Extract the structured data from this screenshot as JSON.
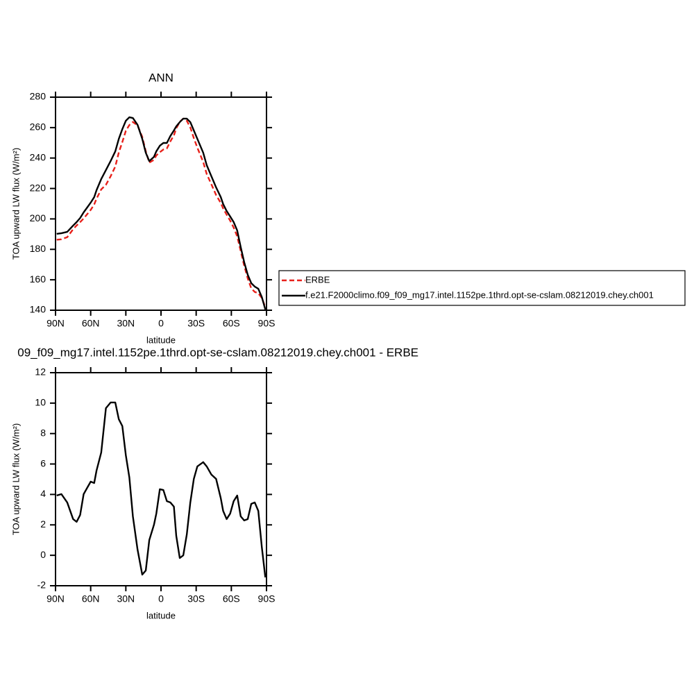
{
  "chart_data": [
    {
      "type": "line",
      "title": "ANN",
      "x_label": "latitude",
      "y_label": "TOA upward LW flux (W/m²)",
      "xlim": [
        90,
        -90
      ],
      "ylim": [
        140,
        280
      ],
      "xticks": [
        {
          "value": 90,
          "label": "90N"
        },
        {
          "value": 60,
          "label": "60N"
        },
        {
          "value": 30,
          "label": "30N"
        },
        0,
        {
          "value": -30,
          "label": "30S"
        },
        {
          "value": -60,
          "label": "60S"
        },
        {
          "value": -90,
          "label": "90S"
        }
      ],
      "yticks": [
        140,
        160,
        180,
        200,
        220,
        240,
        260,
        280
      ],
      "legend": "right",
      "x": [
        89,
        85,
        80,
        75,
        72,
        69,
        66,
        60,
        57,
        55,
        51,
        47,
        43,
        39,
        36,
        33,
        30,
        27,
        24,
        20,
        16,
        13,
        10,
        6,
        4,
        1,
        -2,
        -5,
        -8,
        -11,
        -13,
        -16,
        -19,
        -22,
        -25,
        -28,
        -31,
        -36,
        -39,
        -43,
        -47,
        -51,
        -53,
        -56,
        -59,
        -62,
        -65,
        -68,
        -71,
        -74,
        -77,
        -80,
        -83,
        -86,
        -89
      ],
      "series": [
        {
          "name": "ERBE",
          "color": "#e8201a",
          "line_style": "dashed",
          "values": [
            186.3,
            186.6,
            188.0,
            193.2,
            195.7,
            197.9,
            200.3,
            205.9,
            209.5,
            213.3,
            219.4,
            222.4,
            228.0,
            234.4,
            243.7,
            250.5,
            257.9,
            261.7,
            263.7,
            261.4,
            253.9,
            244.5,
            237.0,
            238.8,
            241.7,
            243.8,
            245.6,
            246.3,
            251.0,
            254.9,
            259.5,
            263.8,
            265.9,
            264.5,
            260.1,
            253.1,
            246.8,
            237.4,
            229.5,
            222.7,
            215.7,
            210.5,
            206.9,
            202.8,
            198.9,
            194.3,
            188.5,
            178.9,
            169.2,
            160.9,
            154.4,
            152.0,
            151.2,
            148.1,
            142.0
          ]
        },
        {
          "name": "f.e21.F2000climo.f09_f09_mg17.intel.1152pe.1thrd.opt-se-cslam.08212019.chey.ch001",
          "color": "#000000",
          "line_style": "solid",
          "values": [
            190.2,
            190.6,
            191.5,
            195.6,
            197.9,
            200.6,
            204.3,
            210.7,
            214.3,
            218.9,
            226.2,
            232.1,
            238.0,
            244.4,
            252.6,
            259.0,
            264.5,
            266.8,
            266.3,
            261.8,
            252.6,
            243.5,
            238.0,
            240.8,
            244.4,
            248.1,
            249.9,
            249.9,
            254.5,
            258.1,
            260.8,
            263.6,
            265.9,
            265.9,
            263.6,
            258.1,
            252.6,
            243.5,
            235.3,
            228.0,
            220.7,
            214.3,
            209.8,
            205.2,
            201.6,
            197.9,
            192.4,
            181.5,
            171.5,
            163.3,
            157.8,
            155.5,
            154.1,
            148.7,
            140.5
          ]
        }
      ]
    },
    {
      "type": "line",
      "title": "09_f09_mg17.intel.1152pe.1thrd.opt-se-cslam.08212019.chey.ch001 - ERBE",
      "x_label": "latitude",
      "y_label": "TOA upward LW flux (W/m²)",
      "xlim": [
        90,
        -90
      ],
      "ylim": [
        -2,
        12
      ],
      "xticks": [
        {
          "value": 90,
          "label": "90N"
        },
        {
          "value": 60,
          "label": "60N"
        },
        {
          "value": 30,
          "label": "30N"
        },
        0,
        {
          "value": -30,
          "label": "30S"
        },
        {
          "value": -60,
          "label": "60S"
        },
        {
          "value": -90,
          "label": "90S"
        }
      ],
      "yticks": [
        -2,
        0,
        2,
        4,
        6,
        8,
        10,
        12
      ],
      "x": [
        89,
        85,
        80,
        75,
        72,
        69,
        66,
        60,
        57,
        55,
        51,
        47,
        43,
        39,
        36,
        33,
        30,
        27,
        24,
        20,
        16,
        13,
        10,
        6,
        4,
        1,
        -2,
        -5,
        -8,
        -11,
        -13,
        -16,
        -19,
        -22,
        -25,
        -28,
        -31,
        -36,
        -39,
        -43,
        -47,
        -51,
        -53,
        -56,
        -59,
        -62,
        -65,
        -68,
        -71,
        -74,
        -77,
        -80,
        -83,
        -86,
        -89
      ],
      "color": "#000000",
      "values": [
        3.93,
        4.02,
        3.47,
        2.38,
        2.2,
        2.65,
        4.02,
        4.84,
        4.75,
        5.57,
        6.76,
        9.67,
        10.04,
        10.04,
        8.94,
        8.49,
        6.57,
        5.11,
        2.56,
        0.37,
        -1.27,
        -1.0,
        1.0,
        2.01,
        2.74,
        4.34,
        4.29,
        3.56,
        3.47,
        3.2,
        1.28,
        -0.18,
        0.0,
        1.37,
        3.47,
        5.02,
        5.84,
        6.12,
        5.84,
        5.3,
        5.02,
        3.75,
        2.92,
        2.38,
        2.74,
        3.56,
        3.93,
        2.56,
        2.29,
        2.38,
        3.38,
        3.47,
        2.92,
        0.55,
        -1.45
      ]
    }
  ]
}
